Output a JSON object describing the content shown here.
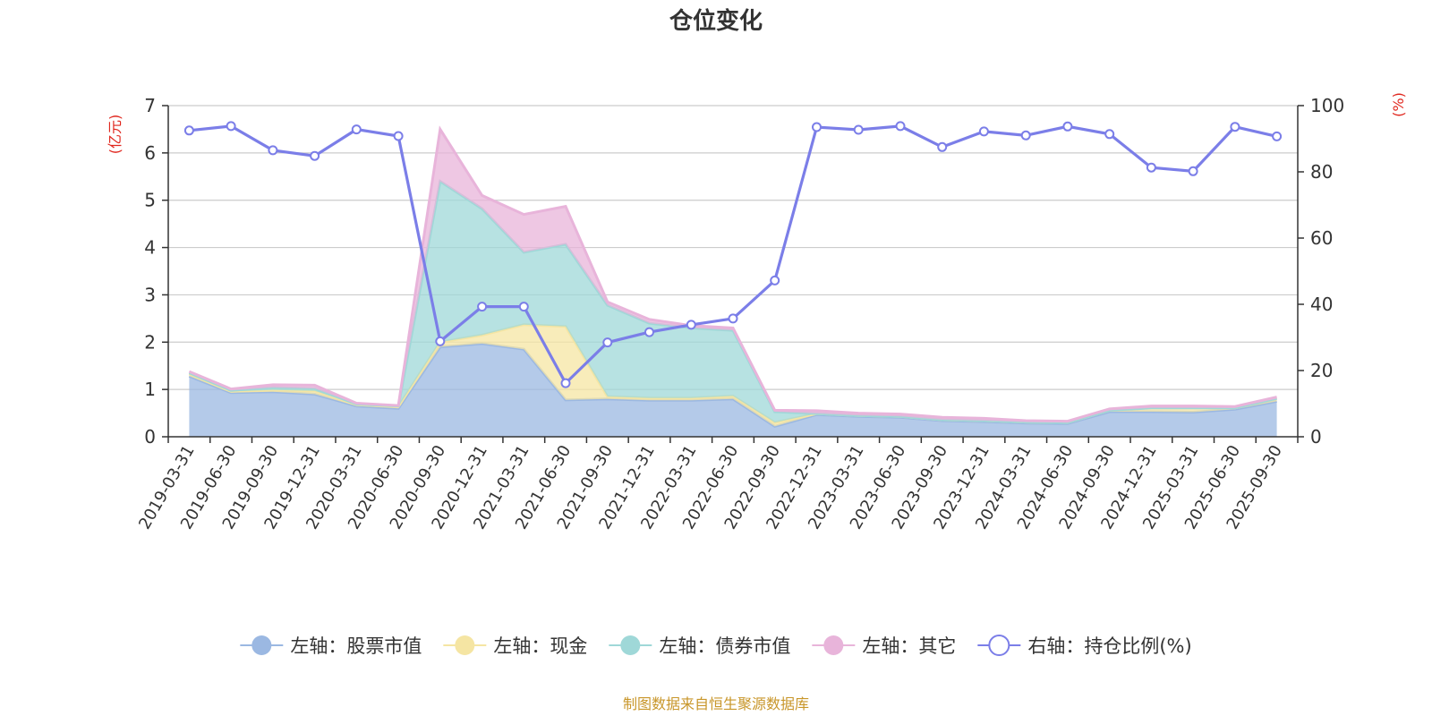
{
  "chart_data": {
    "type": "area",
    "title": "仓位变化",
    "left_axis_unit": "(亿元)",
    "right_axis_unit": "(%)",
    "ylim_left": [
      0,
      7
    ],
    "ylim_right": [
      0,
      100
    ],
    "left_ticks": [
      "0",
      "1",
      "2",
      "3",
      "4",
      "5",
      "6",
      "7"
    ],
    "right_ticks": [
      "0",
      "20",
      "40",
      "60",
      "80",
      "100"
    ],
    "grid": true,
    "legend_position": "bottom",
    "source": "制图数据来自恒生聚源数据库",
    "x": [
      "2019-03-31",
      "2019-06-30",
      "2019-09-30",
      "2019-12-31",
      "2020-03-31",
      "2020-06-30",
      "2020-09-30",
      "2020-12-31",
      "2021-03-31",
      "2021-06-30",
      "2021-09-30",
      "2021-12-31",
      "2022-03-31",
      "2022-06-30",
      "2022-09-30",
      "2022-12-31",
      "2023-03-31",
      "2023-06-30",
      "2023-09-30",
      "2023-12-31",
      "2024-03-31",
      "2024-06-30",
      "2024-09-30",
      "2024-12-31",
      "2025-03-31",
      "2025-06-30",
      "2025-09-30"
    ],
    "series": [
      {
        "name": "左轴：股票市值",
        "axis": "left",
        "kind": "stack-area",
        "color": "#9bb8e2",
        "values": [
          1.28,
          0.93,
          0.95,
          0.9,
          0.65,
          0.6,
          1.9,
          1.97,
          1.85,
          0.78,
          0.8,
          0.77,
          0.77,
          0.8,
          0.22,
          0.47,
          0.43,
          0.41,
          0.34,
          0.32,
          0.29,
          0.28,
          0.53,
          0.53,
          0.52,
          0.58,
          0.75
        ]
      },
      {
        "name": "左轴：现金",
        "axis": "left",
        "kind": "stack-area",
        "color": "#f5e5a3",
        "values": [
          0.05,
          0.03,
          0.04,
          0.07,
          0.03,
          0.04,
          0.1,
          0.18,
          0.52,
          1.55,
          0.05,
          0.05,
          0.05,
          0.06,
          0.08,
          0.02,
          0.02,
          0.02,
          0.02,
          0.02,
          0.02,
          0.02,
          0.03,
          0.08,
          0.09,
          0.03,
          0.06
        ]
      },
      {
        "name": "左轴：债券市值",
        "axis": "left",
        "kind": "stack-area",
        "color": "#9fd8d8",
        "values": [
          0.02,
          0.02,
          0.05,
          0.05,
          0.01,
          0.01,
          3.4,
          2.67,
          1.53,
          1.74,
          1.93,
          1.58,
          1.48,
          1.39,
          0.23,
          0.0,
          0.0,
          0.0,
          0.0,
          0.0,
          0.0,
          0.0,
          0.0,
          0.0,
          0.0,
          0.0,
          0.0
        ]
      },
      {
        "name": "左轴：其它",
        "axis": "left",
        "kind": "stack-area",
        "color": "#e8b4da",
        "values": [
          0.03,
          0.03,
          0.06,
          0.07,
          0.02,
          0.01,
          1.1,
          0.28,
          0.8,
          0.8,
          0.07,
          0.08,
          0.05,
          0.05,
          0.03,
          0.06,
          0.05,
          0.05,
          0.05,
          0.05,
          0.03,
          0.03,
          0.03,
          0.04,
          0.04,
          0.03,
          0.03
        ]
      },
      {
        "name": "右轴：持仓比例(%)",
        "axis": "right",
        "kind": "line",
        "color": "#7b7ee8",
        "values": [
          92.5,
          93.8,
          86.5,
          84.8,
          92.8,
          90.8,
          28.8,
          39.3,
          39.3,
          16.2,
          28.5,
          31.6,
          33.8,
          35.7,
          47.2,
          93.5,
          92.7,
          93.8,
          87.5,
          92.2,
          91.0,
          93.7,
          91.4,
          81.3,
          80.2,
          93.6,
          90.7
        ]
      }
    ]
  }
}
